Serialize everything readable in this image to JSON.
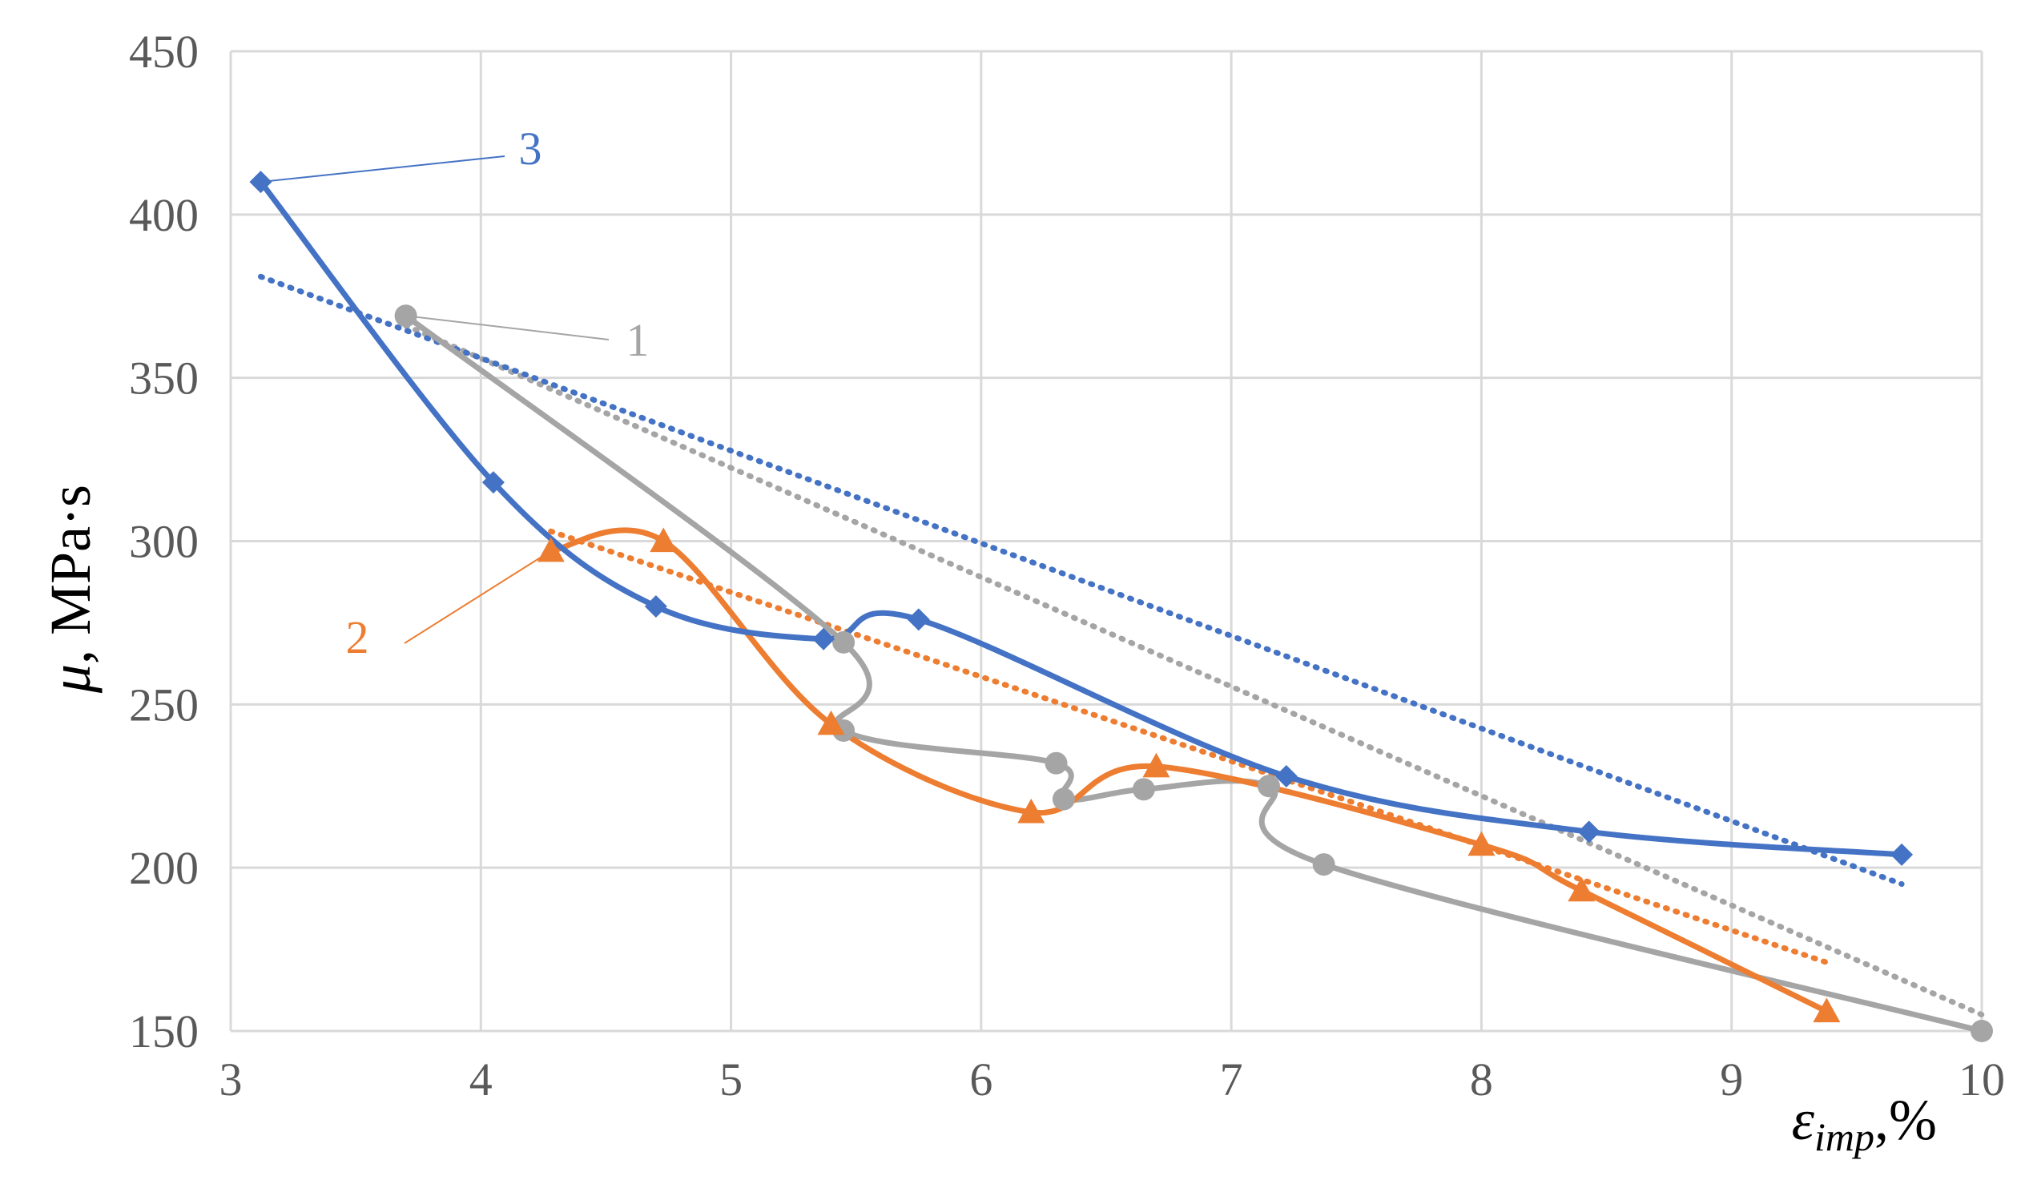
{
  "chart_data": {
    "type": "line",
    "title": "",
    "xlabel": {
      "symbol": "ε",
      "subscript": "imp",
      "suffix": ",%"
    },
    "ylabel": {
      "symbol": "μ",
      "suffix": ", MPa·s"
    },
    "xlim": [
      3,
      10
    ],
    "ylim": [
      150,
      450
    ],
    "xticks": [
      3,
      4,
      5,
      6,
      7,
      8,
      9,
      10
    ],
    "yticks": [
      150,
      200,
      250,
      300,
      350,
      400,
      450
    ],
    "grid": true,
    "legend": "none",
    "series": [
      {
        "label": "1",
        "color": "#A5A5A5",
        "marker": "circle",
        "x": [
          3.7,
          5.45,
          5.45,
          6.3,
          6.33,
          6.65,
          7.15,
          7.37,
          10.0
        ],
        "y": [
          369,
          269,
          242,
          232,
          221,
          224,
          225,
          201,
          150
        ],
        "trend": {
          "x": [
            3.7,
            10.0
          ],
          "y": [
            366,
            155
          ]
        }
      },
      {
        "label": "2",
        "color": "#ED7D31",
        "marker": "triangle",
        "x": [
          4.28,
          4.73,
          5.4,
          6.2,
          6.7,
          8.0,
          8.4,
          9.38
        ],
        "y": [
          297,
          300,
          244,
          217,
          231,
          207,
          193,
          156
        ],
        "trend": {
          "x": [
            4.28,
            9.38
          ],
          "y": [
            303,
            171
          ]
        }
      },
      {
        "label": "3",
        "color": "#4472C4",
        "marker": "diamond",
        "x": [
          3.12,
          4.05,
          4.7,
          5.37,
          5.75,
          7.22,
          8.43,
          9.68
        ],
        "y": [
          410,
          318,
          280,
          270,
          276,
          228,
          211,
          204
        ],
        "trend": {
          "x": [
            3.12,
            9.68
          ],
          "y": [
            381,
            195
          ]
        }
      }
    ]
  }
}
